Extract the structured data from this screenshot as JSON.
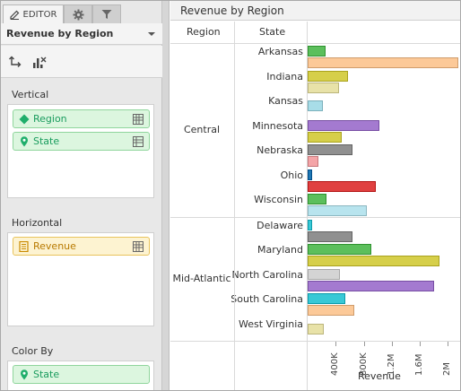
{
  "sidebar": {
    "tabs": [
      {
        "label": "EDITOR",
        "icon": "pencil-icon"
      },
      {
        "icon": "gear-icon"
      },
      {
        "icon": "filter-icon"
      }
    ],
    "panel_title": "Revenue by Region",
    "vertical": {
      "label": "Vertical",
      "fields": [
        "Region",
        "State"
      ]
    },
    "horizontal": {
      "label": "Horizontal",
      "fields": [
        "Revenue"
      ]
    },
    "color_by": {
      "label": "Color By",
      "fields": [
        "State"
      ]
    }
  },
  "chart_data": {
    "type": "bar",
    "title": "Revenue by Region",
    "column_headers": [
      "Region",
      "State"
    ],
    "xlabel": "Revenue",
    "xlim": [
      0,
      2200000
    ],
    "ticks": [
      400000,
      800000,
      1200000,
      1600000,
      2000000
    ],
    "tick_labels": [
      "400K",
      "800K",
      "1.2M",
      "1.6M",
      "2M"
    ],
    "groups": [
      {
        "region": "Central",
        "states": [
          {
            "name": "Arkansas",
            "bars": [
              {
                "v": 250000,
                "c": "#5cbf5c"
              },
              {
                "v": 2150000,
                "c": "#fcc998"
              }
            ]
          },
          {
            "name": "Indiana",
            "bars": [
              {
                "v": 580000,
                "c": "#d6cf4a"
              },
              {
                "v": 450000,
                "c": "#e8e2a8"
              }
            ]
          },
          {
            "name": "Kansas",
            "bars": [
              {
                "v": 220000,
                "c": "#a8dde8"
              }
            ]
          },
          {
            "name": "Minnesota",
            "bars": [
              {
                "v": 1020000,
                "c": "#a47ad0"
              },
              {
                "v": 480000,
                "c": "#d6cf4a"
              }
            ]
          },
          {
            "name": "Nebraska",
            "bars": [
              {
                "v": 640000,
                "c": "#909090"
              },
              {
                "v": 150000,
                "c": "#f4a5a8"
              }
            ]
          },
          {
            "name": "Ohio",
            "bars": [
              {
                "v": 60000,
                "c": "#1f78b4"
              },
              {
                "v": 970000,
                "c": "#e04040"
              }
            ]
          },
          {
            "name": "Wisconsin",
            "bars": [
              {
                "v": 270000,
                "c": "#5cbf5c"
              },
              {
                "v": 840000,
                "c": "#b8e4ee"
              }
            ]
          }
        ]
      },
      {
        "region": "Mid-Atlantic",
        "states": [
          {
            "name": "Delaware",
            "bars": [
              {
                "v": 60000,
                "c": "#39c8d6"
              },
              {
                "v": 640000,
                "c": "#909090"
              }
            ]
          },
          {
            "name": "Maryland",
            "bars": [
              {
                "v": 910000,
                "c": "#5cbf5c"
              },
              {
                "v": 1880000,
                "c": "#d6cf4a"
              }
            ]
          },
          {
            "name": "North Carolina",
            "bars": [
              {
                "v": 460000,
                "c": "#d4d4d4"
              },
              {
                "v": 1800000,
                "c": "#a47ad0"
              }
            ]
          },
          {
            "name": "South Carolina",
            "bars": [
              {
                "v": 540000,
                "c": "#39c8d6"
              },
              {
                "v": 660000,
                "c": "#fcc998"
              }
            ]
          },
          {
            "name": "West Virginia",
            "bars": [
              {
                "v": 230000,
                "c": "#e8e2a8"
              }
            ]
          }
        ]
      }
    ]
  }
}
